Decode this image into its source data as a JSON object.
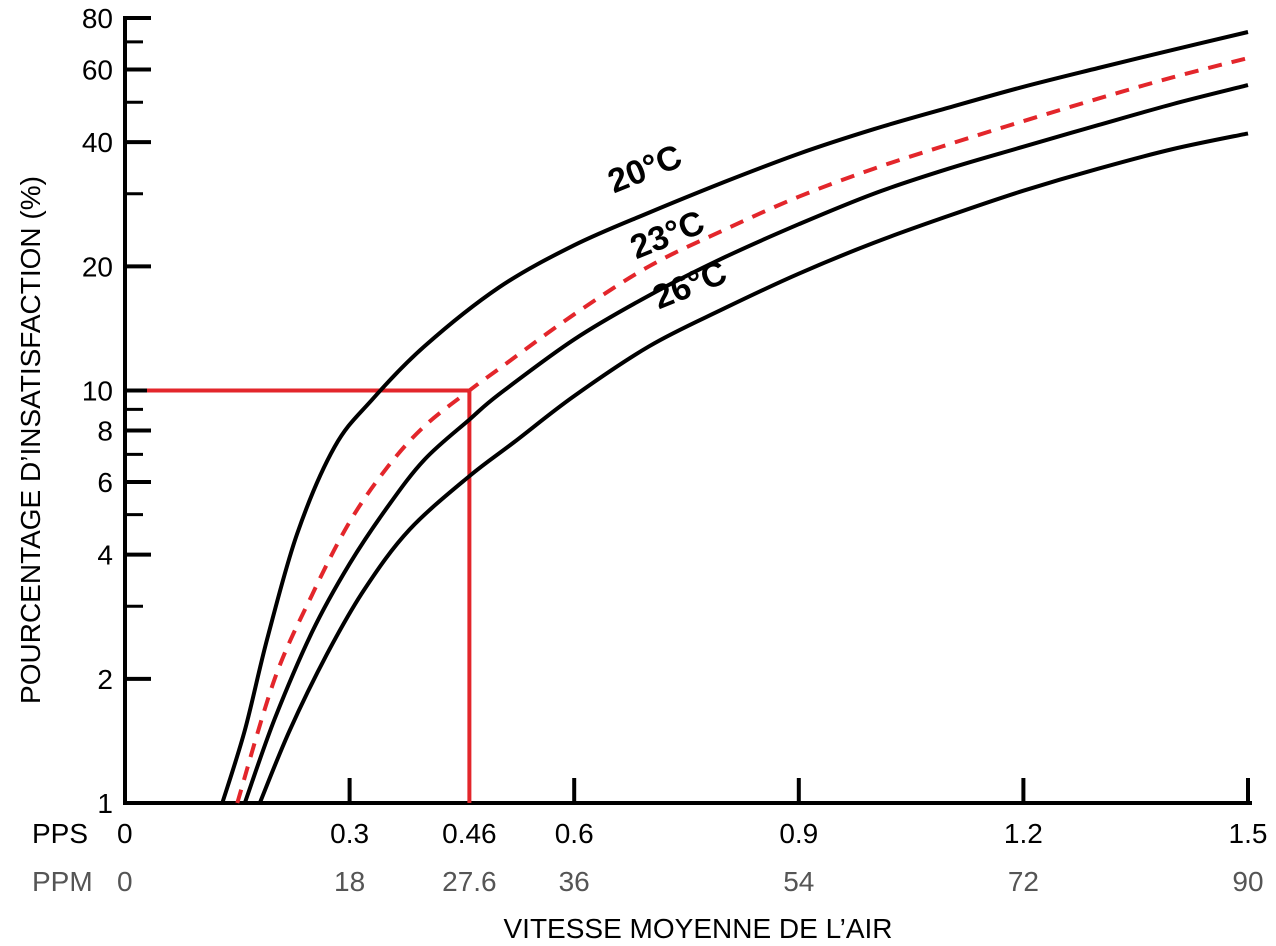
{
  "chart_data": {
    "type": "line",
    "ylabel": "POURCENTAGE D’INSATISFACTION (%)",
    "xlabel": "VITESSE MOYENNE DE L’AIR",
    "yscale": "log",
    "ylim": [
      1,
      80
    ],
    "xlim": [
      0,
      1.5
    ],
    "y_ticks": [
      {
        "value": 1,
        "label": "1"
      },
      {
        "value": 2,
        "label": "2"
      },
      {
        "value": 4,
        "label": "4"
      },
      {
        "value": 6,
        "label": "6"
      },
      {
        "value": 8,
        "label": "8"
      },
      {
        "value": 10,
        "label": "10"
      },
      {
        "value": 20,
        "label": "20"
      },
      {
        "value": 40,
        "label": "40"
      },
      {
        "value": 60,
        "label": "60"
      },
      {
        "value": 80,
        "label": "80"
      }
    ],
    "y_minor_ticks": [
      3,
      5,
      7,
      9,
      30,
      50,
      70
    ],
    "x_ticks": [
      0,
      0.3,
      0.6,
      0.9,
      1.2,
      1.5
    ],
    "x_axis_rows": [
      {
        "name": "PPS",
        "labels": [
          "0",
          "0.3",
          "0.46",
          "0.6",
          "0.9",
          "1.2",
          "1.5"
        ],
        "values": [
          0,
          0.3,
          0.46,
          0.6,
          0.9,
          1.2,
          1.5
        ],
        "highlight_index": 2
      },
      {
        "name": "PPM",
        "labels": [
          "0",
          "18",
          "27.6",
          "36",
          "54",
          "72",
          "90"
        ],
        "values": [
          0,
          0.3,
          0.46,
          0.6,
          0.9,
          1.2,
          1.5
        ],
        "highlight_index": 2
      }
    ],
    "series": [
      {
        "name": "20°C",
        "style": "solid",
        "color": "#000000",
        "x": [
          0.13,
          0.16,
          0.19,
          0.23,
          0.28,
          0.33,
          0.4,
          0.5,
          0.6,
          0.7,
          0.8,
          0.9,
          1.0,
          1.1,
          1.2,
          1.3,
          1.4,
          1.5
        ],
        "y": [
          1.0,
          1.5,
          2.5,
          4.5,
          7.3,
          9.5,
          12.8,
          17.8,
          22.5,
          27.0,
          32.0,
          37.5,
          43.0,
          48.5,
          54.5,
          60.5,
          67.0,
          74.0
        ]
      },
      {
        "name": "23°C",
        "style": "solid",
        "color": "#000000",
        "x": [
          0.16,
          0.2,
          0.25,
          0.3,
          0.35,
          0.4,
          0.46,
          0.5,
          0.6,
          0.7,
          0.8,
          0.9,
          1.0,
          1.1,
          1.2,
          1.3,
          1.4,
          1.5
        ],
        "y": [
          1.0,
          1.6,
          2.6,
          3.8,
          5.2,
          6.8,
          8.5,
          9.8,
          13.3,
          17.0,
          21.0,
          25.3,
          30.0,
          34.5,
          39.0,
          44.0,
          49.5,
          55.0
        ]
      },
      {
        "name": "",
        "style": "dashed",
        "color": "#e3262b",
        "x": [
          0.15,
          0.2,
          0.25,
          0.3,
          0.35,
          0.4,
          0.46,
          0.5,
          0.6,
          0.7,
          0.8,
          0.9,
          1.0,
          1.1,
          1.2,
          1.3,
          1.4,
          1.5
        ],
        "y": [
          1.0,
          2.0,
          3.2,
          4.8,
          6.5,
          8.2,
          10.0,
          11.3,
          15.3,
          20.0,
          24.5,
          29.5,
          34.5,
          39.5,
          45.0,
          51.0,
          57.5,
          64.0
        ]
      },
      {
        "name": "26°C",
        "style": "solid",
        "color": "#000000",
        "x": [
          0.18,
          0.22,
          0.27,
          0.32,
          0.38,
          0.46,
          0.52,
          0.6,
          0.7,
          0.8,
          0.9,
          1.0,
          1.1,
          1.2,
          1.3,
          1.4,
          1.5
        ],
        "y": [
          1.0,
          1.5,
          2.3,
          3.3,
          4.6,
          6.2,
          7.5,
          9.7,
          12.8,
          15.8,
          19.2,
          22.8,
          26.5,
          30.5,
          34.5,
          38.5,
          42.0
        ]
      }
    ],
    "curve_labels": [
      {
        "text": "20°C",
        "x": 0.7,
        "y": 32.5,
        "angle": -22
      },
      {
        "text": "23°C",
        "x": 0.73,
        "y": 22.5,
        "angle": -22
      },
      {
        "text": "26°C",
        "x": 0.76,
        "y": 17.0,
        "angle": -22
      }
    ],
    "reference_line": {
      "x": 0.46,
      "y": 10,
      "color": "#e3262b"
    },
    "colors": {
      "axis": "#000000",
      "accent": "#e3262b",
      "secondary_text": "#555555"
    }
  }
}
